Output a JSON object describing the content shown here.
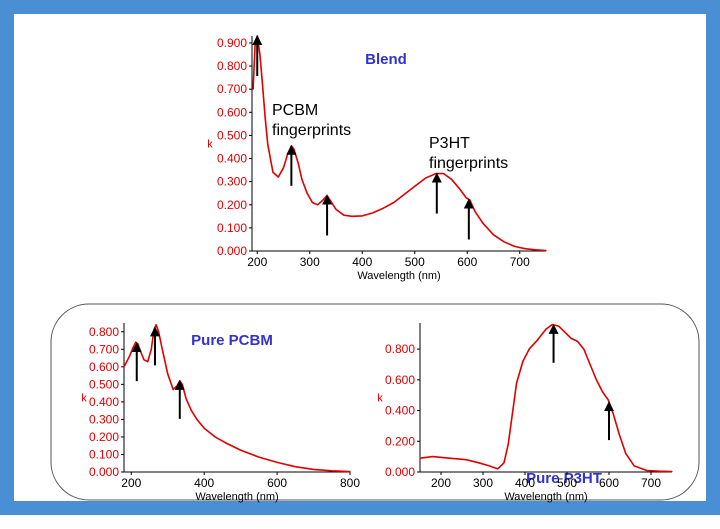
{
  "colors": {
    "frame": "#4a8fd4",
    "curve": "#e00000",
    "ytick": "#e00000",
    "ann": "#3333cc",
    "axis": "#000000"
  },
  "chart_data": [
    {
      "type": "line",
      "title": "Blend",
      "xlabel": "Wavelength (nm)",
      "ylabel": "k",
      "xlim": [
        190,
        750
      ],
      "ylim": [
        0,
        0.93
      ],
      "xticks": [
        "200",
        "300",
        "400",
        "500",
        "600",
        "700"
      ],
      "yticks": [
        "0.000",
        "0.100",
        "0.200",
        "0.300",
        "0.400",
        "0.500",
        "0.600",
        "0.700",
        "0.800",
        "0.900"
      ],
      "annotations": [
        {
          "text": "PCBM",
          "text2": "fingerprints"
        },
        {
          "text": "P3HT",
          "text2": "fingerprints"
        }
      ],
      "arrows_x": [
        200,
        265,
        333,
        542,
        603
      ],
      "x": [
        192,
        196,
        200,
        205,
        210,
        215,
        220,
        230,
        240,
        250,
        258,
        265,
        270,
        278,
        285,
        295,
        305,
        315,
        325,
        333,
        340,
        350,
        365,
        380,
        400,
        420,
        440,
        460,
        480,
        500,
        520,
        540,
        555,
        570,
        585,
        598,
        605,
        615,
        630,
        650,
        670,
        690,
        710,
        730,
        750
      ],
      "values": [
        0.7,
        0.9,
        0.93,
        0.85,
        0.72,
        0.58,
        0.46,
        0.34,
        0.32,
        0.36,
        0.42,
        0.455,
        0.44,
        0.38,
        0.31,
        0.25,
        0.21,
        0.2,
        0.22,
        0.24,
        0.215,
        0.18,
        0.155,
        0.15,
        0.152,
        0.165,
        0.185,
        0.21,
        0.245,
        0.28,
        0.315,
        0.335,
        0.335,
        0.31,
        0.27,
        0.23,
        0.22,
        0.17,
        0.12,
        0.07,
        0.04,
        0.02,
        0.01,
        0.005,
        0.002
      ]
    },
    {
      "type": "line",
      "title": "Pure PCBM",
      "xlabel": "Wavelength (nm)",
      "ylabel": "k",
      "xlim": [
        180,
        800
      ],
      "ylim": [
        0,
        0.85
      ],
      "xticks": [
        "200",
        "400",
        "600",
        "800"
      ],
      "yticks": [
        "0.000",
        "0.100",
        "0.200",
        "0.300",
        "0.400",
        "0.500",
        "0.600",
        "0.700",
        "0.800"
      ],
      "arrows_x": [
        215,
        265,
        333
      ],
      "x": [
        180,
        195,
        205,
        212,
        218,
        225,
        235,
        245,
        255,
        262,
        268,
        275,
        285,
        300,
        315,
        325,
        333,
        340,
        350,
        365,
        380,
        400,
        430,
        460,
        500,
        550,
        600,
        650,
        700,
        750,
        800
      ],
      "values": [
        0.6,
        0.66,
        0.71,
        0.74,
        0.73,
        0.69,
        0.64,
        0.63,
        0.7,
        0.81,
        0.84,
        0.8,
        0.7,
        0.56,
        0.47,
        0.49,
        0.52,
        0.5,
        0.42,
        0.35,
        0.3,
        0.25,
        0.2,
        0.165,
        0.125,
        0.085,
        0.055,
        0.03,
        0.015,
        0.007,
        0.003
      ]
    },
    {
      "type": "line",
      "title": "Pure P3HT",
      "xlabel": "Wavelength (nm)",
      "ylabel": "k",
      "xlim": [
        150,
        750
      ],
      "ylim": [
        0,
        0.97
      ],
      "xticks": [
        "200",
        "300",
        "400",
        "500",
        "600",
        "700"
      ],
      "yticks": [
        "0.000",
        "0.200",
        "0.400",
        "0.600",
        "0.800"
      ],
      "arrows_x": [
        468,
        600
      ],
      "x": [
        150,
        180,
        220,
        260,
        290,
        315,
        335,
        350,
        360,
        370,
        380,
        395,
        410,
        430,
        450,
        465,
        480,
        495,
        510,
        525,
        540,
        555,
        570,
        585,
        598,
        610,
        625,
        640,
        660,
        690,
        720,
        750
      ],
      "values": [
        0.09,
        0.1,
        0.09,
        0.08,
        0.06,
        0.04,
        0.02,
        0.06,
        0.18,
        0.38,
        0.58,
        0.72,
        0.8,
        0.86,
        0.93,
        0.96,
        0.95,
        0.91,
        0.87,
        0.85,
        0.8,
        0.7,
        0.6,
        0.52,
        0.47,
        0.38,
        0.24,
        0.12,
        0.04,
        0.01,
        0.005,
        0.003
      ]
    }
  ]
}
